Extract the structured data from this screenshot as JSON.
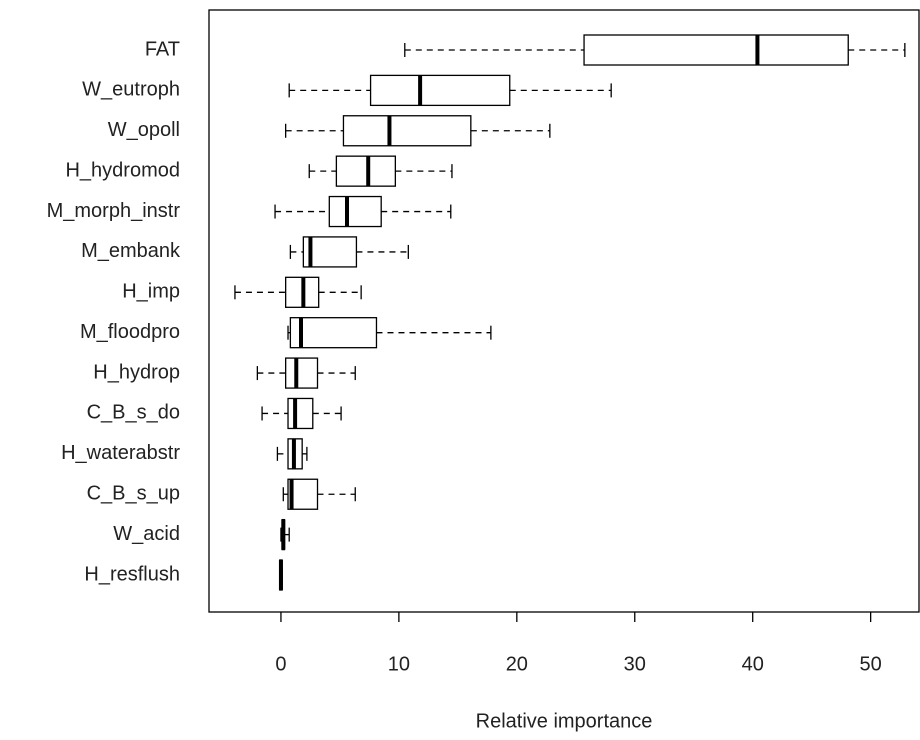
{
  "chart_data": {
    "type": "boxplot",
    "orientation": "horizontal",
    "x_label": "Relative importance",
    "categories": [
      "FAT",
      "W_eutroph",
      "W_opoll",
      "H_hydromod",
      "M_morph_instr",
      "M_embank",
      "H_imp",
      "M_floodpro",
      "H_hydrop",
      "C_B_s_do",
      "H_waterabstr",
      "C_B_s_up",
      "W_acid",
      "H_resflush"
    ],
    "boxes": [
      {
        "low": 10.5,
        "q1": 25.7,
        "median": 40.4,
        "q3": 48.1,
        "high": 52.9
      },
      {
        "low": 0.7,
        "q1": 7.6,
        "median": 11.8,
        "q3": 19.4,
        "high": 28.0
      },
      {
        "low": 0.4,
        "q1": 5.3,
        "median": 9.2,
        "q3": 16.1,
        "high": 22.8
      },
      {
        "low": 2.4,
        "q1": 4.7,
        "median": 7.4,
        "q3": 9.7,
        "high": 14.5
      },
      {
        "low": -0.5,
        "q1": 4.1,
        "median": 5.6,
        "q3": 8.5,
        "high": 14.4
      },
      {
        "low": 0.8,
        "q1": 1.9,
        "median": 2.5,
        "q3": 6.4,
        "high": 10.8
      },
      {
        "low": -3.9,
        "q1": 0.4,
        "median": 1.9,
        "q3": 3.2,
        "high": 6.8
      },
      {
        "low": 0.6,
        "q1": 0.8,
        "median": 1.7,
        "q3": 8.1,
        "high": 17.8
      },
      {
        "low": -2.0,
        "q1": 0.4,
        "median": 1.3,
        "q3": 3.1,
        "high": 6.3
      },
      {
        "low": -1.6,
        "q1": 0.6,
        "median": 1.2,
        "q3": 2.7,
        "high": 5.1
      },
      {
        "low": -0.3,
        "q1": 0.6,
        "median": 1.1,
        "q3": 1.8,
        "high": 2.2
      },
      {
        "low": 0.2,
        "q1": 0.6,
        "median": 0.9,
        "q3": 3.1,
        "high": 6.3
      },
      {
        "low": 0.0,
        "q1": 0.1,
        "median": 0.2,
        "q3": 0.3,
        "high": 0.7
      },
      {
        "low": -0.1,
        "q1": -0.1,
        "median": 0.0,
        "q3": 0.1,
        "high": 0.1
      }
    ],
    "color": "#000000",
    "xlim": [
      -6.1,
      54.1
    ],
    "xticks": [
      0,
      10,
      20,
      30,
      40,
      50
    ]
  }
}
